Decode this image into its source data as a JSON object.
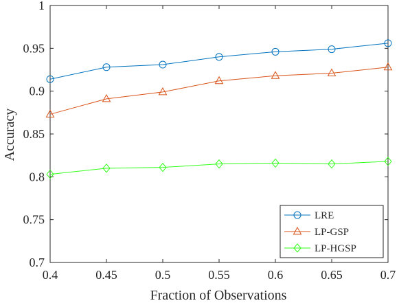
{
  "chart_data": {
    "type": "line",
    "title": "",
    "xlabel": "Fraction of Observations",
    "ylabel": "Accuracy",
    "xlim": [
      0.4,
      0.7
    ],
    "ylim": [
      0.7,
      1
    ],
    "x": [
      0.4,
      0.45,
      0.5,
      0.55,
      0.6,
      0.65,
      0.7
    ],
    "x_ticks": [
      "0.4",
      "0.45",
      "0.5",
      "0.55",
      "0.6",
      "0.65",
      "0.7"
    ],
    "y_tick_values": [
      0.7,
      0.75,
      0.8,
      0.85,
      0.9,
      0.95,
      1
    ],
    "y_ticks": [
      "0.7",
      "0.75",
      "0.8",
      "0.85",
      "0.9",
      "0.95",
      "1"
    ],
    "grid": false,
    "legend_position": "bottom-right",
    "series": [
      {
        "name": "LRE",
        "color": "#0072BD",
        "marker": "circle",
        "values": [
          0.914,
          0.928,
          0.931,
          0.94,
          0.946,
          0.949,
          0.956
        ]
      },
      {
        "name": "LP-GSP",
        "color": "#D95319",
        "marker": "triangle",
        "values": [
          0.873,
          0.891,
          0.899,
          0.912,
          0.918,
          0.921,
          0.928
        ]
      },
      {
        "name": "LP-HGSP",
        "color": "#33FF1A",
        "marker": "diamond",
        "values": [
          0.803,
          0.81,
          0.811,
          0.815,
          0.816,
          0.815,
          0.818
        ]
      }
    ]
  }
}
